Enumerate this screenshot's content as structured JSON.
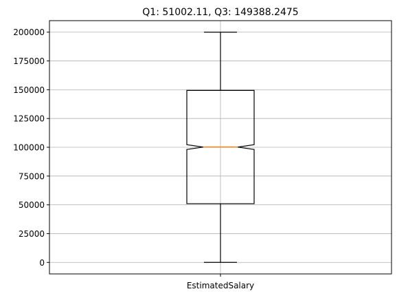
{
  "chart_data": {
    "type": "box",
    "title": "Q1: 51002.11, Q3: 149388.2475",
    "categories": [
      "EstimatedSalary"
    ],
    "box": {
      "whisker_low": 11.58,
      "q1": 51002.11,
      "median": 100193.915,
      "q3": 149388.2475,
      "whisker_high": 199992.48,
      "notch_low": 98150.0,
      "notch_high": 102240.0,
      "notched": true
    },
    "ylim": [
      -10000,
      210000
    ],
    "yticks": [
      0,
      25000,
      50000,
      75000,
      100000,
      125000,
      150000,
      175000,
      200000
    ],
    "ytick_labels": [
      "0",
      "25000",
      "50000",
      "75000",
      "100000",
      "125000",
      "150000",
      "175000",
      "200000"
    ],
    "grid": true,
    "colors": {
      "box": "#000000",
      "median": "#ff7f0e",
      "grid": "#b0b0b0"
    }
  }
}
